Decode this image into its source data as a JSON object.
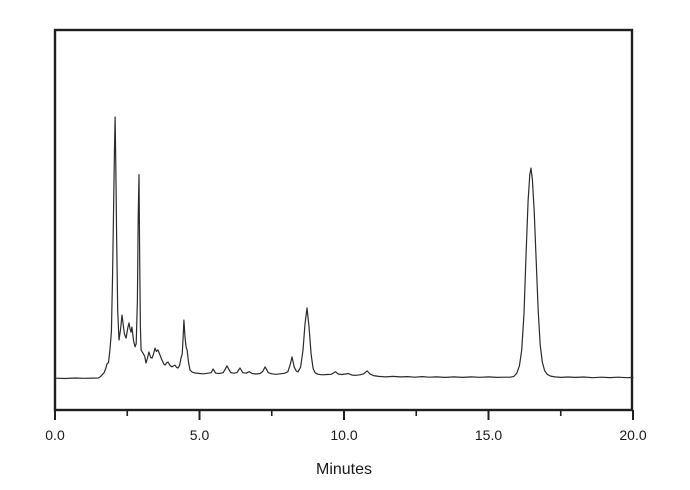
{
  "figure": {
    "background_color": "#ffffff",
    "plot_border_color": "#1f1f1f",
    "trace_color": "#2b2b2b",
    "text_color": "#1a1a1a"
  },
  "chart_data": {
    "type": "line",
    "title": "",
    "xlabel": "Minutes",
    "ylabel": "",
    "xlim": [
      0.0,
      20.0
    ],
    "grid": false,
    "legend": false,
    "x_major_tick_values": [
      0,
      5,
      10,
      15,
      20
    ],
    "x_major_tick_labels": [
      "0.0",
      "5.0",
      "10.0",
      "15.0",
      "20.0"
    ],
    "x_minor_tick_values": [
      2.5,
      7.5,
      12.5,
      17.5
    ],
    "y_axis_note": "no y-axis ticks or labels shown; intensity given as % of tallest peak",
    "main_peaks": [
      {
        "time_min": 2.08,
        "relative_intensity_pct": 100
      },
      {
        "time_min": 2.91,
        "relative_intensity_pct": 78
      },
      {
        "time_min": 4.46,
        "relative_intensity_pct": 22.5
      },
      {
        "time_min": 8.2,
        "relative_intensity_pct": 8.4
      },
      {
        "time_min": 8.72,
        "relative_intensity_pct": 27.1
      },
      {
        "time_min": 16.47,
        "relative_intensity_pct": 80.5
      }
    ],
    "series": [
      {
        "name": "chromatogram",
        "y_unit": "relative intensity (% of tallest peak)",
        "points": [
          [
            0.0,
            0.3
          ],
          [
            0.35,
            0.2
          ],
          [
            0.7,
            0.4
          ],
          [
            1.0,
            0.25
          ],
          [
            1.3,
            0.35
          ],
          [
            1.5,
            0.4
          ],
          [
            1.56,
            0.8
          ],
          [
            1.63,
            1.6
          ],
          [
            1.7,
            2.4
          ],
          [
            1.76,
            4.2
          ],
          [
            1.8,
            5.8
          ],
          [
            1.85,
            6.3
          ],
          [
            1.9,
            11
          ],
          [
            1.95,
            18
          ],
          [
            1.99,
            38
          ],
          [
            2.03,
            68
          ],
          [
            2.06,
            88
          ],
          [
            2.08,
            100
          ],
          [
            2.105,
            82
          ],
          [
            2.13,
            55
          ],
          [
            2.17,
            26
          ],
          [
            2.215,
            14.9
          ],
          [
            2.27,
            19
          ],
          [
            2.32,
            24.4
          ],
          [
            2.4,
            17.2
          ],
          [
            2.46,
            15.6
          ],
          [
            2.52,
            19.5
          ],
          [
            2.56,
            21.4
          ],
          [
            2.6,
            19
          ],
          [
            2.63,
            17.9
          ],
          [
            2.66,
            19.8
          ],
          [
            2.72,
            14.5
          ],
          [
            2.77,
            12.3
          ],
          [
            2.81,
            13.5
          ],
          [
            2.85,
            30
          ],
          [
            2.88,
            62
          ],
          [
            2.905,
            78
          ],
          [
            2.93,
            45
          ],
          [
            2.955,
            20
          ],
          [
            2.98,
            11
          ],
          [
            3.04,
            9.9
          ],
          [
            3.1,
            8.8
          ],
          [
            3.15,
            6.1
          ],
          [
            3.2,
            8
          ],
          [
            3.25,
            10.3
          ],
          [
            3.31,
            8.2
          ],
          [
            3.36,
            8.0
          ],
          [
            3.41,
            9.5
          ],
          [
            3.46,
            11.8
          ],
          [
            3.51,
            10.5
          ],
          [
            3.56,
            11.1
          ],
          [
            3.62,
            9.5
          ],
          [
            3.7,
            7.3
          ],
          [
            3.76,
            5.8
          ],
          [
            3.81,
            5.3
          ],
          [
            3.86,
            6.2
          ],
          [
            3.91,
            6.5
          ],
          [
            3.98,
            5.2
          ],
          [
            4.05,
            4.6
          ],
          [
            4.1,
            5.0
          ],
          [
            4.15,
            5.3
          ],
          [
            4.21,
            4.4
          ],
          [
            4.26,
            4.2
          ],
          [
            4.31,
            5.2
          ],
          [
            4.36,
            8.0
          ],
          [
            4.4,
            9.5
          ],
          [
            4.43,
            15
          ],
          [
            4.46,
            22.5
          ],
          [
            4.5,
            16
          ],
          [
            4.54,
            12
          ],
          [
            4.57,
            11.1
          ],
          [
            4.62,
            6.5
          ],
          [
            4.67,
            3.4
          ],
          [
            4.75,
            2.6
          ],
          [
            4.85,
            2.3
          ],
          [
            5.0,
            2.1
          ],
          [
            5.15,
            2.0
          ],
          [
            5.3,
            2.2
          ],
          [
            5.4,
            2.4
          ],
          [
            5.47,
            3.8
          ],
          [
            5.56,
            2.2
          ],
          [
            5.68,
            2.1
          ],
          [
            5.82,
            2.4
          ],
          [
            5.95,
            5.0
          ],
          [
            6.08,
            2.4
          ],
          [
            6.2,
            2.2
          ],
          [
            6.3,
            2.5
          ],
          [
            6.4,
            4.2
          ],
          [
            6.5,
            2.4
          ],
          [
            6.62,
            2.2
          ],
          [
            6.72,
            2.8
          ],
          [
            6.82,
            2.1
          ],
          [
            6.95,
            1.9
          ],
          [
            7.1,
            2.1
          ],
          [
            7.19,
            2.9
          ],
          [
            7.27,
            4.6
          ],
          [
            7.38,
            2.4
          ],
          [
            7.5,
            2.0
          ],
          [
            7.65,
            1.8
          ],
          [
            7.8,
            2.0
          ],
          [
            7.95,
            2.2
          ],
          [
            8.06,
            2.8
          ],
          [
            8.14,
            5.5
          ],
          [
            8.2,
            8.4
          ],
          [
            8.28,
            4.5
          ],
          [
            8.35,
            3.0
          ],
          [
            8.41,
            2.7
          ],
          [
            8.5,
            4.5
          ],
          [
            8.58,
            11
          ],
          [
            8.65,
            21
          ],
          [
            8.72,
            27.1
          ],
          [
            8.79,
            20
          ],
          [
            8.86,
            9.5
          ],
          [
            8.93,
            4.0
          ],
          [
            9.0,
            2.4
          ],
          [
            9.1,
            1.8
          ],
          [
            9.25,
            1.6
          ],
          [
            9.42,
            1.7
          ],
          [
            9.55,
            1.8
          ],
          [
            9.64,
            2.3
          ],
          [
            9.7,
            2.8
          ],
          [
            9.8,
            1.9
          ],
          [
            9.92,
            1.7
          ],
          [
            10.05,
            1.9
          ],
          [
            10.15,
            2.1
          ],
          [
            10.28,
            1.5
          ],
          [
            10.42,
            1.4
          ],
          [
            10.55,
            1.6
          ],
          [
            10.68,
            2.0
          ],
          [
            10.8,
            3.1
          ],
          [
            10.9,
            1.9
          ],
          [
            11.02,
            1.3
          ],
          [
            11.2,
            1.0
          ],
          [
            11.45,
            0.8
          ],
          [
            11.7,
            1.0
          ],
          [
            11.95,
            0.8
          ],
          [
            12.2,
            0.9
          ],
          [
            12.45,
            0.7
          ],
          [
            12.7,
            0.9
          ],
          [
            12.95,
            0.7
          ],
          [
            13.2,
            0.8
          ],
          [
            13.5,
            0.6
          ],
          [
            13.8,
            0.8
          ],
          [
            14.1,
            0.6
          ],
          [
            14.4,
            0.8
          ],
          [
            14.7,
            0.65
          ],
          [
            15.0,
            0.8
          ],
          [
            15.3,
            0.6
          ],
          [
            15.55,
            0.7
          ],
          [
            15.75,
            0.7
          ],
          [
            15.88,
            1.0
          ],
          [
            15.98,
            2.2
          ],
          [
            16.07,
            5
          ],
          [
            16.15,
            11
          ],
          [
            16.23,
            25
          ],
          [
            16.3,
            48
          ],
          [
            16.37,
            68
          ],
          [
            16.43,
            78
          ],
          [
            16.47,
            80.5
          ],
          [
            16.52,
            76
          ],
          [
            16.58,
            64
          ],
          [
            16.65,
            45
          ],
          [
            16.72,
            26
          ],
          [
            16.79,
            13
          ],
          [
            16.86,
            6.5
          ],
          [
            16.94,
            3.2
          ],
          [
            17.03,
            1.8
          ],
          [
            17.15,
            1.1
          ],
          [
            17.3,
            0.8
          ],
          [
            17.5,
            0.6
          ],
          [
            17.75,
            0.75
          ],
          [
            18.0,
            0.6
          ],
          [
            18.3,
            0.75
          ],
          [
            18.6,
            0.5
          ],
          [
            18.9,
            0.7
          ],
          [
            19.2,
            0.55
          ],
          [
            19.5,
            0.7
          ],
          [
            19.8,
            0.5
          ],
          [
            20.0,
            0.6
          ]
        ]
      }
    ]
  }
}
